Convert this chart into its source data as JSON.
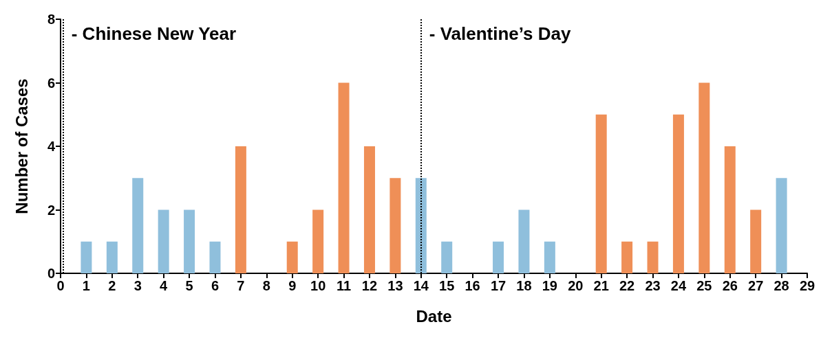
{
  "chart_data": {
    "type": "bar",
    "xlabel": "Date",
    "ylabel": "Number of Cases",
    "x": [
      1,
      2,
      3,
      4,
      5,
      6,
      7,
      8,
      9,
      10,
      11,
      12,
      13,
      14,
      15,
      16,
      17,
      18,
      19,
      20,
      21,
      22,
      23,
      24,
      25,
      26,
      27,
      28
    ],
    "values": [
      1,
      1,
      3,
      2,
      2,
      1,
      4,
      0,
      1,
      2,
      6,
      4,
      3,
      3,
      1,
      0,
      1,
      2,
      1,
      0,
      5,
      1,
      1,
      5,
      6,
      4,
      2,
      3
    ],
    "colors": [
      "#8fbfdc",
      "#8fbfdc",
      "#8fbfdc",
      "#8fbfdc",
      "#8fbfdc",
      "#8fbfdc",
      "#ef8f57",
      "#ef8f57",
      "#ef8f57",
      "#ef8f57",
      "#ef8f57",
      "#ef8f57",
      "#ef8f57",
      "#8fbfdc",
      "#8fbfdc",
      "#8fbfdc",
      "#8fbfdc",
      "#8fbfdc",
      "#8fbfdc",
      "#ef8f57",
      "#ef8f57",
      "#ef8f57",
      "#ef8f57",
      "#ef8f57",
      "#ef8f57",
      "#ef8f57",
      "#ef8f57",
      "#8fbfdc"
    ],
    "xlim": [
      0,
      29
    ],
    "xticks": [
      0,
      1,
      2,
      3,
      4,
      5,
      6,
      7,
      8,
      9,
      10,
      11,
      12,
      13,
      14,
      15,
      16,
      17,
      18,
      19,
      20,
      21,
      22,
      23,
      24,
      25,
      26,
      27,
      28,
      29
    ],
    "ylim": [
      0,
      8
    ],
    "yticks": [
      0,
      2,
      4,
      6,
      8
    ],
    "grid": false,
    "ref_lines": [
      {
        "axis": "x",
        "value": 0.1,
        "label": "- Chinese New Year",
        "line_style": "dotted",
        "color": "#000000"
      },
      {
        "axis": "x",
        "value": 14,
        "label": "- Valentine’s Day",
        "line_style": "dotted",
        "color": "#000000"
      }
    ]
  }
}
